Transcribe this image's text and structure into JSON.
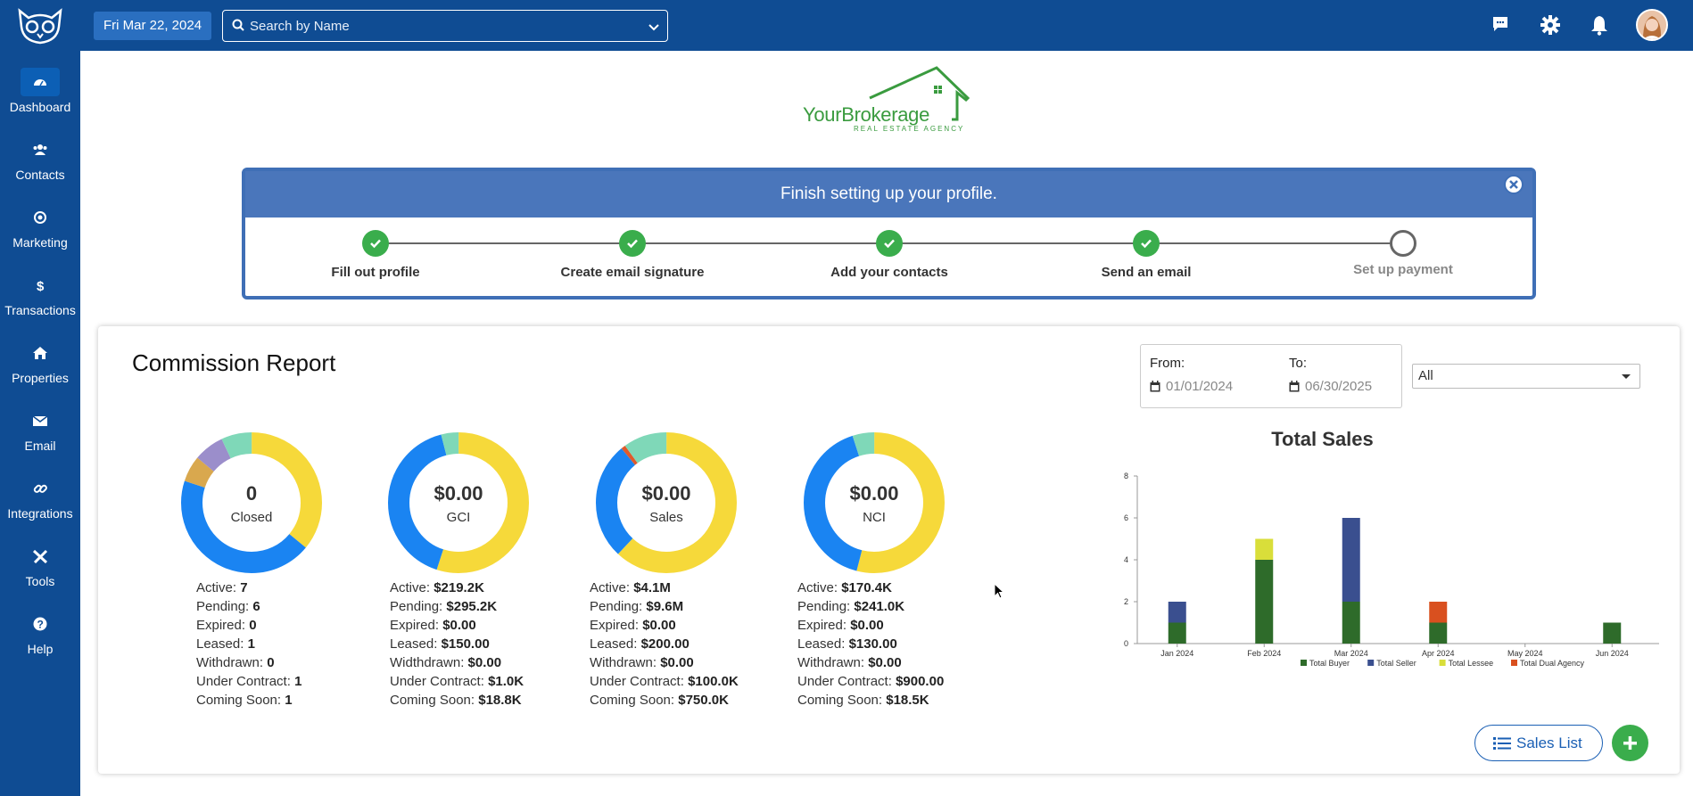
{
  "sidebar": {
    "items": [
      {
        "label": "Dashboard",
        "icon": "dashboard-icon"
      },
      {
        "label": "Contacts",
        "icon": "users-icon"
      },
      {
        "label": "Marketing",
        "icon": "bullseye-icon"
      },
      {
        "label": "Transactions",
        "icon": "dollar-icon"
      },
      {
        "label": "Properties",
        "icon": "home-icon"
      },
      {
        "label": "Email",
        "icon": "envelope-icon"
      },
      {
        "label": "Integrations",
        "icon": "link-icon"
      },
      {
        "label": "Tools",
        "icon": "tools-icon"
      },
      {
        "label": "Help",
        "icon": "question-icon"
      }
    ],
    "active": "Dashboard"
  },
  "topbar": {
    "date": "Fri Mar 22, 2024",
    "search_placeholder": "Search by Name",
    "icons": [
      "chat-icon",
      "gear-icon",
      "bell-icon",
      "avatar"
    ]
  },
  "brand": {
    "name": "YourBrokerage",
    "tagline": "REAL ESTATE AGENCY",
    "color": "#3a9b3f"
  },
  "setup": {
    "title": "Finish setting up your profile.",
    "steps": [
      {
        "label": "Fill out profile",
        "done": true
      },
      {
        "label": "Create email signature",
        "done": true
      },
      {
        "label": "Add your contacts",
        "done": true
      },
      {
        "label": "Send an email",
        "done": true
      },
      {
        "label": "Set up payment",
        "done": false
      }
    ]
  },
  "report": {
    "title": "Commission Report",
    "from_label": "From:",
    "from_value": "01/01/2024",
    "to_label": "To:",
    "to_value": "06/30/2025",
    "filter_value": "All",
    "donuts": [
      {
        "value": "0",
        "label": "Closed",
        "segments": [
          {
            "color": "#f6d93a",
            "value": 36
          },
          {
            "color": "#1a84f2",
            "value": 44
          },
          {
            "color": "#d9a84e",
            "value": 6
          },
          {
            "color": "#9b8ecb",
            "value": 7
          },
          {
            "color": "#7fd8b8",
            "value": 7
          }
        ],
        "stats": [
          {
            "k": "Active:",
            "v": "7"
          },
          {
            "k": "Pending:",
            "v": "6"
          },
          {
            "k": "Expired:",
            "v": "0"
          },
          {
            "k": "Leased:",
            "v": "1"
          },
          {
            "k": "Withdrawn:",
            "v": "0"
          },
          {
            "k": "Under Contract:",
            "v": "1"
          },
          {
            "k": "Coming Soon:",
            "v": "1"
          }
        ]
      },
      {
        "value": "$0.00",
        "label": "GCI",
        "segments": [
          {
            "color": "#f6d93a",
            "value": 55
          },
          {
            "color": "#1a84f2",
            "value": 41
          },
          {
            "color": "#7fd8b8",
            "value": 4
          }
        ],
        "stats": [
          {
            "k": "Active:",
            "v": "$219.2K"
          },
          {
            "k": "Pending:",
            "v": "$295.2K"
          },
          {
            "k": "Expired:",
            "v": "$0.00"
          },
          {
            "k": "Leased:",
            "v": "$150.00"
          },
          {
            "k": "Widthdrawn:",
            "v": "$0.00"
          },
          {
            "k": "Under Contract:",
            "v": "$1.0K"
          },
          {
            "k": "Coming Soon:",
            "v": "$18.8K"
          }
        ]
      },
      {
        "value": "$0.00",
        "label": "Sales",
        "segments": [
          {
            "color": "#f6d93a",
            "value": 62
          },
          {
            "color": "#1a84f2",
            "value": 27
          },
          {
            "color": "#e05a2b",
            "value": 1
          },
          {
            "color": "#7fd8b8",
            "value": 10
          }
        ],
        "stats": [
          {
            "k": "Active:",
            "v": "$4.1M"
          },
          {
            "k": "Pending:",
            "v": "$9.6M"
          },
          {
            "k": "Expired:",
            "v": "$0.00"
          },
          {
            "k": "Leased:",
            "v": "$200.00"
          },
          {
            "k": "Withdrawn:",
            "v": "$0.00"
          },
          {
            "k": "Under Contract:",
            "v": "$100.0K"
          },
          {
            "k": "Coming Soon:",
            "v": "$750.0K"
          }
        ]
      },
      {
        "value": "$0.00",
        "label": "NCI",
        "segments": [
          {
            "color": "#f6d93a",
            "value": 54
          },
          {
            "color": "#1a84f2",
            "value": 41
          },
          {
            "color": "#7fd8b8",
            "value": 5
          }
        ],
        "stats": [
          {
            "k": "Active:",
            "v": "$170.4K"
          },
          {
            "k": "Pending:",
            "v": "$241.0K"
          },
          {
            "k": "Expired:",
            "v": "$0.00"
          },
          {
            "k": "Leased:",
            "v": "$130.00"
          },
          {
            "k": "Withdrawn:",
            "v": "$0.00"
          },
          {
            "k": "Under Contract:",
            "v": "$900.00"
          },
          {
            "k": "Coming Soon:",
            "v": "$18.5K"
          }
        ]
      }
    ],
    "sales_list_label": "Sales List"
  },
  "chart_data": {
    "type": "bar",
    "title": "Total Sales",
    "categories": [
      "Jan 2024",
      "Feb 2024",
      "Mar 2024",
      "Apr 2024",
      "May 2024",
      "Jun 2024"
    ],
    "series": [
      {
        "name": "Total Buyer",
        "color": "#2e6b2a",
        "values": [
          1,
          4,
          2,
          1,
          0,
          1
        ]
      },
      {
        "name": "Total Seller",
        "color": "#3a4f8f",
        "values": [
          1,
          0,
          4,
          0,
          0,
          0
        ]
      },
      {
        "name": "Total Lessee",
        "color": "#d9de3a",
        "values": [
          0,
          1,
          0,
          0,
          0,
          0
        ]
      },
      {
        "name": "Total Dual Agency",
        "color": "#d9501f",
        "values": [
          0,
          0,
          0,
          1,
          0,
          0
        ]
      }
    ],
    "stacked": true,
    "ylim": [
      0,
      8
    ],
    "yticks": [
      "0",
      "2",
      "4",
      "6",
      "8"
    ],
    "legend": "bottom"
  }
}
